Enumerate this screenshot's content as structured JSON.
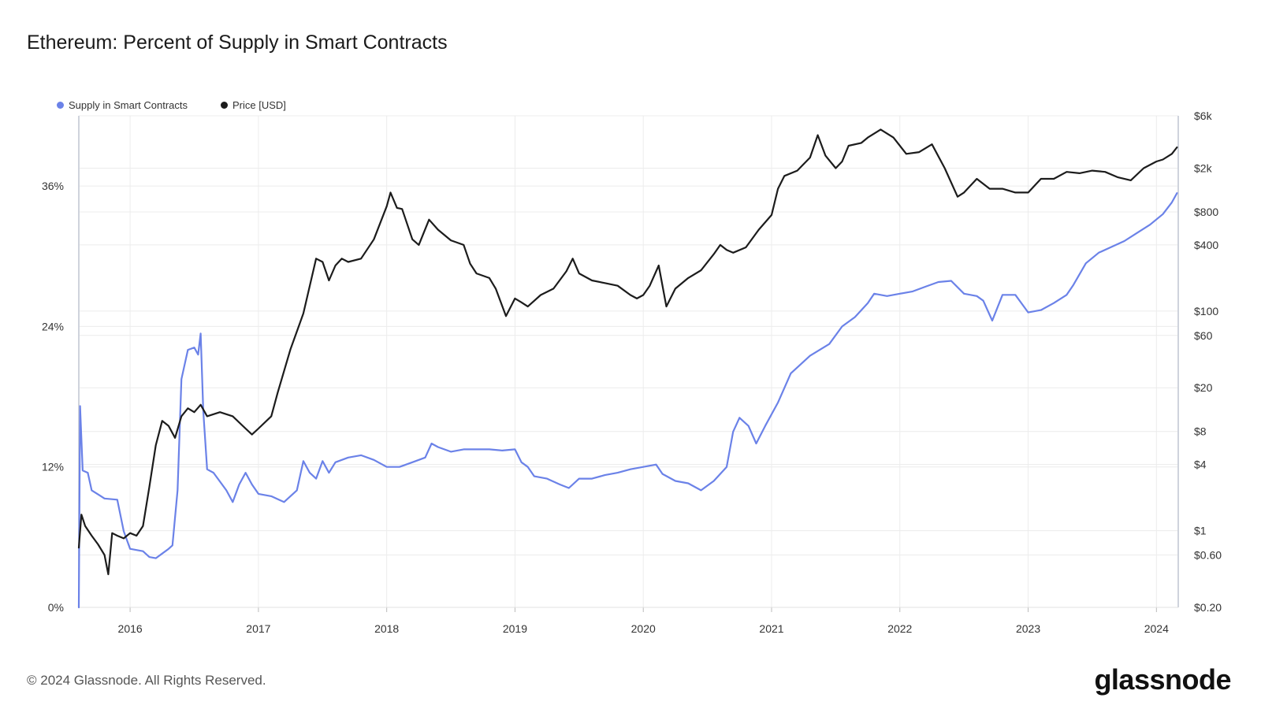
{
  "title": "Ethereum: Percent of Supply in Smart Contracts",
  "footer": "© 2024 Glassnode. All Rights Reserved.",
  "brand": "glassnode",
  "colors": {
    "supply": "#6b82e8",
    "price": "#1c1c1c",
    "grid": "#ececec",
    "axis": "#cfd3dc"
  },
  "chart_data": {
    "type": "line",
    "title": "Ethereum: Percent of Supply in Smart Contracts",
    "legend_placement": "top-left",
    "grid": true,
    "x_range": [
      2015.6,
      2024.17
    ],
    "x_ticks": [
      {
        "value": 2016,
        "label": "2016"
      },
      {
        "value": 2017,
        "label": "2017"
      },
      {
        "value": 2018,
        "label": "2018"
      },
      {
        "value": 2019,
        "label": "2019"
      },
      {
        "value": 2020,
        "label": "2020"
      },
      {
        "value": 2021,
        "label": "2021"
      },
      {
        "value": 2022,
        "label": "2022"
      },
      {
        "value": 2023,
        "label": "2023"
      },
      {
        "value": 2024,
        "label": "2024"
      }
    ],
    "y_left": {
      "range": [
        0,
        42
      ],
      "ticks": [
        {
          "value": 0,
          "label": "0%"
        },
        {
          "value": 12,
          "label": "12%"
        },
        {
          "value": 24,
          "label": "24%"
        },
        {
          "value": 36,
          "label": "36%"
        }
      ]
    },
    "y_right": {
      "scale": "log",
      "range": [
        0.2,
        6000
      ],
      "ticks": [
        {
          "value": 0.2,
          "label": "$0.20"
        },
        {
          "value": 0.6,
          "label": "$0.60"
        },
        {
          "value": 1,
          "label": "$1"
        },
        {
          "value": 4,
          "label": "$4"
        },
        {
          "value": 8,
          "label": "$8"
        },
        {
          "value": 20,
          "label": "$20"
        },
        {
          "value": 60,
          "label": "$60"
        },
        {
          "value": 100,
          "label": "$100"
        },
        {
          "value": 400,
          "label": "$400"
        },
        {
          "value": 800,
          "label": "$800"
        },
        {
          "value": 2000,
          "label": "$2k"
        },
        {
          "value": 6000,
          "label": "$6k"
        }
      ]
    },
    "series": [
      {
        "name": "Supply in Smart Contracts",
        "axis": "left",
        "color": "#6b82e8",
        "points": [
          [
            2015.6,
            0.0
          ],
          [
            2015.61,
            17.2
          ],
          [
            2015.63,
            11.7
          ],
          [
            2015.67,
            11.5
          ],
          [
            2015.7,
            10.0
          ],
          [
            2015.8,
            9.3
          ],
          [
            2015.9,
            9.2
          ],
          [
            2015.95,
            6.5
          ],
          [
            2016.0,
            5.0
          ],
          [
            2016.1,
            4.8
          ],
          [
            2016.15,
            4.3
          ],
          [
            2016.2,
            4.2
          ],
          [
            2016.25,
            4.6
          ],
          [
            2016.3,
            5.0
          ],
          [
            2016.33,
            5.3
          ],
          [
            2016.37,
            10.0
          ],
          [
            2016.4,
            19.5
          ],
          [
            2016.45,
            22.0
          ],
          [
            2016.5,
            22.2
          ],
          [
            2016.53,
            21.6
          ],
          [
            2016.55,
            23.4
          ],
          [
            2016.57,
            16.8
          ],
          [
            2016.6,
            11.8
          ],
          [
            2016.65,
            11.5
          ],
          [
            2016.75,
            10.0
          ],
          [
            2016.8,
            9.0
          ],
          [
            2016.85,
            10.5
          ],
          [
            2016.9,
            11.5
          ],
          [
            2016.95,
            10.5
          ],
          [
            2017.0,
            9.7
          ],
          [
            2017.1,
            9.5
          ],
          [
            2017.2,
            9.0
          ],
          [
            2017.3,
            10.0
          ],
          [
            2017.35,
            12.5
          ],
          [
            2017.4,
            11.5
          ],
          [
            2017.45,
            11.0
          ],
          [
            2017.5,
            12.5
          ],
          [
            2017.55,
            11.5
          ],
          [
            2017.6,
            12.4
          ],
          [
            2017.7,
            12.8
          ],
          [
            2017.8,
            13.0
          ],
          [
            2017.9,
            12.6
          ],
          [
            2018.0,
            12.0
          ],
          [
            2018.1,
            12.0
          ],
          [
            2018.2,
            12.4
          ],
          [
            2018.3,
            12.8
          ],
          [
            2018.35,
            14.0
          ],
          [
            2018.4,
            13.7
          ],
          [
            2018.5,
            13.3
          ],
          [
            2018.6,
            13.5
          ],
          [
            2018.7,
            13.5
          ],
          [
            2018.8,
            13.5
          ],
          [
            2018.9,
            13.4
          ],
          [
            2019.0,
            13.5
          ],
          [
            2019.05,
            12.4
          ],
          [
            2019.1,
            12.0
          ],
          [
            2019.15,
            11.2
          ],
          [
            2019.25,
            11.0
          ],
          [
            2019.35,
            10.5
          ],
          [
            2019.42,
            10.2
          ],
          [
            2019.5,
            11.0
          ],
          [
            2019.6,
            11.0
          ],
          [
            2019.7,
            11.3
          ],
          [
            2019.8,
            11.5
          ],
          [
            2019.9,
            11.8
          ],
          [
            2020.0,
            12.0
          ],
          [
            2020.1,
            12.2
          ],
          [
            2020.15,
            11.4
          ],
          [
            2020.25,
            10.8
          ],
          [
            2020.35,
            10.6
          ],
          [
            2020.45,
            10.0
          ],
          [
            2020.55,
            10.8
          ],
          [
            2020.65,
            12.0
          ],
          [
            2020.7,
            15.0
          ],
          [
            2020.75,
            16.2
          ],
          [
            2020.82,
            15.5
          ],
          [
            2020.88,
            14.0
          ],
          [
            2020.95,
            15.5
          ],
          [
            2021.05,
            17.5
          ],
          [
            2021.15,
            20.0
          ],
          [
            2021.3,
            21.5
          ],
          [
            2021.45,
            22.5
          ],
          [
            2021.55,
            24.0
          ],
          [
            2021.65,
            24.8
          ],
          [
            2021.75,
            26.0
          ],
          [
            2021.8,
            26.8
          ],
          [
            2021.9,
            26.6
          ],
          [
            2022.0,
            26.8
          ],
          [
            2022.1,
            27.0
          ],
          [
            2022.2,
            27.4
          ],
          [
            2022.3,
            27.8
          ],
          [
            2022.4,
            27.9
          ],
          [
            2022.5,
            26.8
          ],
          [
            2022.6,
            26.6
          ],
          [
            2022.65,
            26.2
          ],
          [
            2022.72,
            24.5
          ],
          [
            2022.8,
            26.7
          ],
          [
            2022.9,
            26.7
          ],
          [
            2023.0,
            25.2
          ],
          [
            2023.1,
            25.4
          ],
          [
            2023.2,
            26.0
          ],
          [
            2023.3,
            26.7
          ],
          [
            2023.35,
            27.5
          ],
          [
            2023.45,
            29.4
          ],
          [
            2023.55,
            30.3
          ],
          [
            2023.65,
            30.8
          ],
          [
            2023.75,
            31.3
          ],
          [
            2023.85,
            32.0
          ],
          [
            2023.95,
            32.7
          ],
          [
            2024.05,
            33.6
          ],
          [
            2024.12,
            34.6
          ],
          [
            2024.16,
            35.4
          ]
        ]
      },
      {
        "name": "Price [USD]",
        "axis": "right",
        "color": "#1c1c1c",
        "points": [
          [
            2015.6,
            0.7
          ],
          [
            2015.62,
            1.4
          ],
          [
            2015.65,
            1.1
          ],
          [
            2015.7,
            0.9
          ],
          [
            2015.75,
            0.75
          ],
          [
            2015.8,
            0.6
          ],
          [
            2015.83,
            0.4
          ],
          [
            2015.86,
            0.95
          ],
          [
            2015.9,
            0.9
          ],
          [
            2015.95,
            0.85
          ],
          [
            2016.0,
            0.95
          ],
          [
            2016.05,
            0.9
          ],
          [
            2016.1,
            1.1
          ],
          [
            2016.15,
            2.5
          ],
          [
            2016.2,
            6.0
          ],
          [
            2016.25,
            10.0
          ],
          [
            2016.3,
            9.0
          ],
          [
            2016.35,
            7.0
          ],
          [
            2016.4,
            11.0
          ],
          [
            2016.45,
            13.0
          ],
          [
            2016.5,
            12.0
          ],
          [
            2016.55,
            14.0
          ],
          [
            2016.6,
            11.0
          ],
          [
            2016.7,
            12.0
          ],
          [
            2016.8,
            11.0
          ],
          [
            2016.9,
            8.5
          ],
          [
            2016.95,
            7.5
          ],
          [
            2017.0,
            8.5
          ],
          [
            2017.1,
            11.0
          ],
          [
            2017.15,
            18.0
          ],
          [
            2017.25,
            45.0
          ],
          [
            2017.35,
            95.0
          ],
          [
            2017.45,
            300.0
          ],
          [
            2017.5,
            280.0
          ],
          [
            2017.55,
            190.0
          ],
          [
            2017.6,
            260.0
          ],
          [
            2017.65,
            300.0
          ],
          [
            2017.7,
            280.0
          ],
          [
            2017.8,
            300.0
          ],
          [
            2017.9,
            450.0
          ],
          [
            2018.0,
            900.0
          ],
          [
            2018.03,
            1200.0
          ],
          [
            2018.08,
            870.0
          ],
          [
            2018.12,
            850.0
          ],
          [
            2018.2,
            450.0
          ],
          [
            2018.25,
            400.0
          ],
          [
            2018.33,
            680.0
          ],
          [
            2018.4,
            550.0
          ],
          [
            2018.5,
            440.0
          ],
          [
            2018.6,
            400.0
          ],
          [
            2018.65,
            270.0
          ],
          [
            2018.7,
            220.0
          ],
          [
            2018.8,
            200.0
          ],
          [
            2018.85,
            160.0
          ],
          [
            2018.93,
            90.0
          ],
          [
            2019.0,
            130.0
          ],
          [
            2019.05,
            120.0
          ],
          [
            2019.1,
            110.0
          ],
          [
            2019.2,
            140.0
          ],
          [
            2019.3,
            160.0
          ],
          [
            2019.4,
            230.0
          ],
          [
            2019.45,
            300.0
          ],
          [
            2019.5,
            220.0
          ],
          [
            2019.6,
            190.0
          ],
          [
            2019.7,
            180.0
          ],
          [
            2019.8,
            170.0
          ],
          [
            2019.9,
            140.0
          ],
          [
            2019.95,
            130.0
          ],
          [
            2020.0,
            140.0
          ],
          [
            2020.05,
            170.0
          ],
          [
            2020.12,
            260.0
          ],
          [
            2020.18,
            110.0
          ],
          [
            2020.25,
            160.0
          ],
          [
            2020.35,
            200.0
          ],
          [
            2020.45,
            235.0
          ],
          [
            2020.55,
            330.0
          ],
          [
            2020.6,
            400.0
          ],
          [
            2020.65,
            360.0
          ],
          [
            2020.7,
            340.0
          ],
          [
            2020.8,
            380.0
          ],
          [
            2020.9,
            550.0
          ],
          [
            2021.0,
            750.0
          ],
          [
            2021.05,
            1300.0
          ],
          [
            2021.1,
            1700.0
          ],
          [
            2021.2,
            1900.0
          ],
          [
            2021.3,
            2500.0
          ],
          [
            2021.36,
            4000.0
          ],
          [
            2021.42,
            2600.0
          ],
          [
            2021.5,
            2000.0
          ],
          [
            2021.55,
            2300.0
          ],
          [
            2021.6,
            3200.0
          ],
          [
            2021.7,
            3400.0
          ],
          [
            2021.75,
            3800.0
          ],
          [
            2021.85,
            4500.0
          ],
          [
            2021.95,
            3800.0
          ],
          [
            2022.05,
            2700.0
          ],
          [
            2022.15,
            2800.0
          ],
          [
            2022.25,
            3300.0
          ],
          [
            2022.35,
            2000.0
          ],
          [
            2022.45,
            1100.0
          ],
          [
            2022.5,
            1200.0
          ],
          [
            2022.6,
            1600.0
          ],
          [
            2022.7,
            1300.0
          ],
          [
            2022.8,
            1300.0
          ],
          [
            2022.9,
            1200.0
          ],
          [
            2023.0,
            1200.0
          ],
          [
            2023.1,
            1600.0
          ],
          [
            2023.2,
            1600.0
          ],
          [
            2023.3,
            1850.0
          ],
          [
            2023.4,
            1800.0
          ],
          [
            2023.5,
            1900.0
          ],
          [
            2023.6,
            1850.0
          ],
          [
            2023.7,
            1650.0
          ],
          [
            2023.8,
            1550.0
          ],
          [
            2023.9,
            2000.0
          ],
          [
            2024.0,
            2300.0
          ],
          [
            2024.05,
            2400.0
          ],
          [
            2024.12,
            2700.0
          ],
          [
            2024.16,
            3100.0
          ]
        ]
      }
    ]
  }
}
